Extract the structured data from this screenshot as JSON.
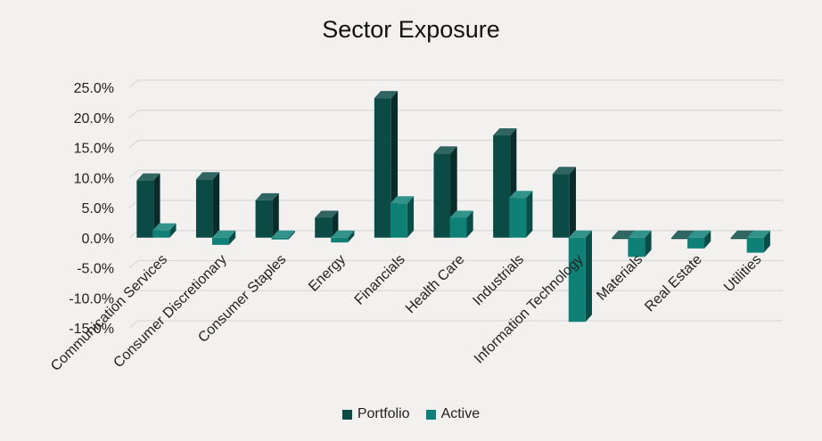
{
  "chart_data": {
    "type": "bar",
    "title": "Sector Exposure",
    "categories": [
      "Communication Services",
      "Consumer Discretionary",
      "Consumer Staples",
      "Energy",
      "Financials",
      "Health Care",
      "Industrials",
      "Information Technology",
      "Materials",
      "Real Estate",
      "Utilities"
    ],
    "series": [
      {
        "name": "Portfolio",
        "color": "#0b4a45",
        "values": [
          9.5,
          9.7,
          6.2,
          3.3,
          23.2,
          14.0,
          17.0,
          10.6,
          0.0,
          0.0,
          0.0
        ]
      },
      {
        "name": "Active",
        "color": "#0e8076",
        "values": [
          1.2,
          -1.2,
          -0.3,
          -0.8,
          5.7,
          3.3,
          6.6,
          -14.0,
          -3.2,
          -1.8,
          -2.5
        ]
      }
    ],
    "ylim": [
      -15,
      25
    ],
    "yticks": [
      "25.0%",
      "20.0%",
      "15.0%",
      "10.0%",
      "5.0%",
      "0.0%",
      "-5.0%",
      "-10.0%",
      "-15.0%"
    ],
    "grid": true,
    "legend_position": "bottom"
  }
}
